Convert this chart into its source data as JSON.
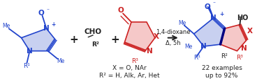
{
  "background_color": "#ffffff",
  "fig_width": 3.78,
  "fig_height": 1.2,
  "dpi": 100,
  "blue": "#2244cc",
  "red": "#cc2222",
  "dark": "#222222",
  "navy": "#000080",
  "pink_fill": "#f5c8c8",
  "blue_fill": "#c8d0f0",
  "arrow_text1": "1,4-dioxane",
  "arrow_text2": "Δ, 5h",
  "conditions1": "X = O, NAr",
  "conditions2": "R² = H, Alk, Ar, Het",
  "examples1": "22 examples",
  "examples2": "up to 92%"
}
